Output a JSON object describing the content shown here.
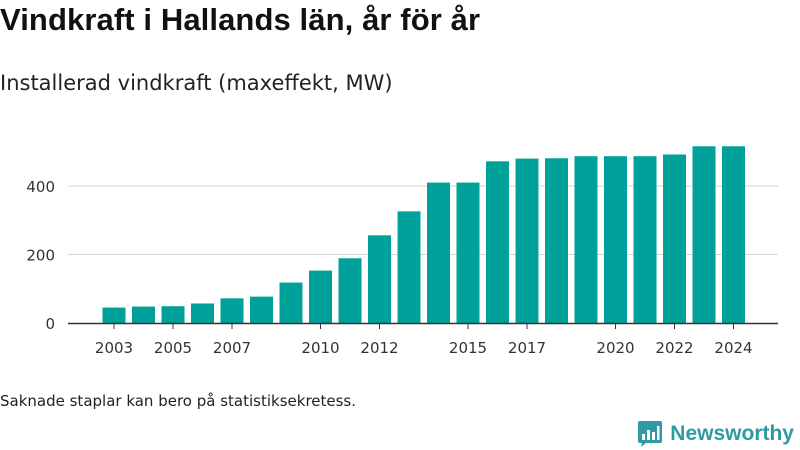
{
  "title": "Vindkraft i Hallands län, år för år",
  "subtitle": "Installerad vindkraft (maxeffekt, MW)",
  "footnote": "Saknade staplar kan bero på statistiksekretess.",
  "brand": {
    "name": "Newsworthy",
    "color": "#2e9aa3"
  },
  "chart_data": {
    "type": "bar",
    "title": "Vindkraft i Hallands län, år för år",
    "subtitle": "Installerad vindkraft (maxeffekt, MW)",
    "xlabel": "",
    "ylabel": "",
    "bar_color": "#00a19a",
    "ylim": [
      0,
      530
    ],
    "yticks": [
      0,
      200,
      400
    ],
    "grid": true,
    "categories": [
      2003,
      2004,
      2005,
      2006,
      2007,
      2008,
      2009,
      2010,
      2011,
      2012,
      2013,
      2014,
      2015,
      2016,
      2017,
      2018,
      2019,
      2020,
      2021,
      2022,
      2023,
      2024
    ],
    "xtick_labels": [
      2003,
      2005,
      2007,
      2010,
      2012,
      2015,
      2017,
      2020,
      2022,
      2024
    ],
    "values": [
      45,
      48,
      49,
      57,
      72,
      77,
      118,
      153,
      189,
      256,
      326,
      410,
      410,
      472,
      480,
      481,
      487,
      487,
      487,
      492,
      516,
      516
    ]
  }
}
